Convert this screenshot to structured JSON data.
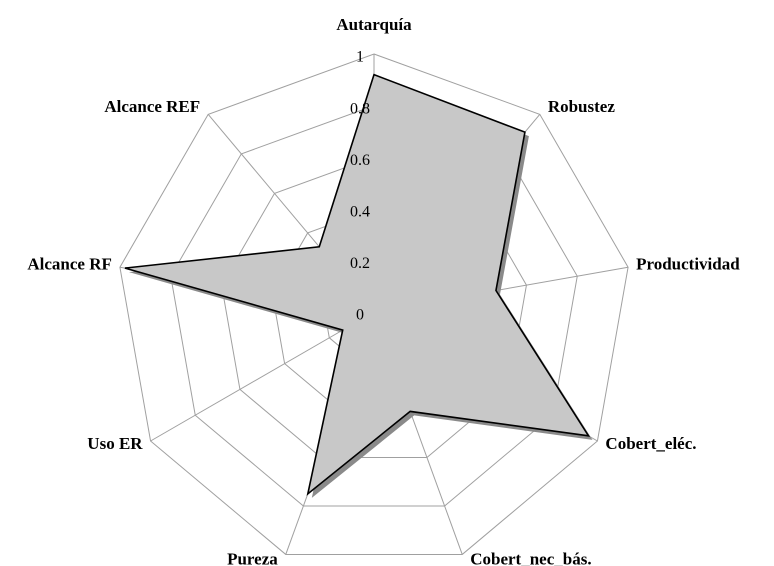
{
  "chart_data": {
    "type": "radar",
    "categories": [
      "Autarquía",
      "Robustez",
      "Productividad",
      "Cobert_eléc.",
      "Cobert_nec_bás.",
      "Pureza",
      "Uso ER",
      "Alcance RF",
      "Alcance REF"
    ],
    "values": [
      0.92,
      0.91,
      0.48,
      0.96,
      0.41,
      0.75,
      0.14,
      0.98,
      0.33
    ],
    "color": "#c8c8c8",
    "ylim": [
      0,
      1
    ],
    "yticks": [
      0,
      0.2,
      0.4,
      0.6,
      0.8,
      1
    ],
    "grid": true
  }
}
